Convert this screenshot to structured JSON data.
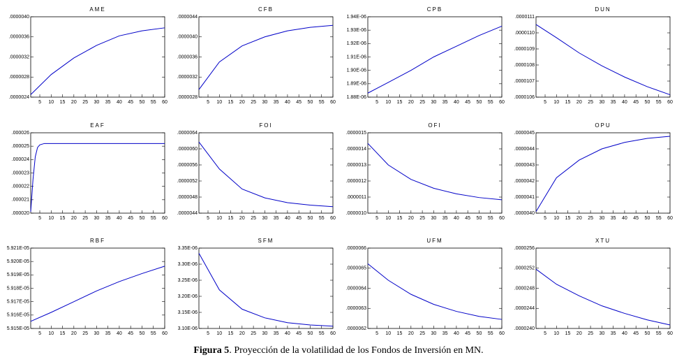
{
  "chart_data": [
    {
      "type": "line",
      "title": "AME",
      "color": "#0000c8",
      "xlim": [
        1,
        60
      ],
      "xticks": [
        5,
        10,
        15,
        20,
        25,
        30,
        35,
        40,
        45,
        50,
        55,
        60
      ],
      "ylim": [
        2.4e-06,
        4e-06
      ],
      "yticks": [
        {
          "value": 2.4e-06,
          "label": ".0000024"
        },
        {
          "value": 2.8e-06,
          "label": ".0000028"
        },
        {
          "value": 3.2e-06,
          "label": ".0000032"
        },
        {
          "value": 3.6e-06,
          "label": ".0000036"
        },
        {
          "value": 4e-06,
          "label": ".0000040"
        }
      ],
      "x": [
        1,
        10,
        20,
        30,
        40,
        50,
        60
      ],
      "values": [
        2.45e-06,
        2.85e-06,
        3.18e-06,
        3.43e-06,
        3.62e-06,
        3.72e-06,
        3.78e-06
      ]
    },
    {
      "type": "line",
      "title": "CFB",
      "color": "#0000c8",
      "xlim": [
        1,
        60
      ],
      "xticks": [
        5,
        10,
        15,
        20,
        25,
        30,
        35,
        40,
        45,
        50,
        55,
        60
      ],
      "ylim": [
        2.8e-06,
        4.4e-06
      ],
      "yticks": [
        {
          "value": 2.8e-06,
          "label": ".0000028"
        },
        {
          "value": 3.2e-06,
          "label": ".0000032"
        },
        {
          "value": 3.6e-06,
          "label": ".0000036"
        },
        {
          "value": 4e-06,
          "label": ".0000040"
        },
        {
          "value": 4.4e-06,
          "label": ".0000044"
        }
      ],
      "x": [
        1,
        10,
        20,
        30,
        40,
        50,
        60
      ],
      "values": [
        2.95e-06,
        3.5e-06,
        3.82e-06,
        4e-06,
        4.12e-06,
        4.19e-06,
        4.23e-06
      ]
    },
    {
      "type": "line",
      "title": "CPB",
      "color": "#0000c8",
      "xlim": [
        1,
        60
      ],
      "xticks": [
        5,
        10,
        15,
        20,
        25,
        30,
        35,
        40,
        45,
        50,
        55,
        60
      ],
      "ylim": [
        1.88e-06,
        1.94e-06
      ],
      "yticks": [
        {
          "value": 1.88e-06,
          "label": "1.88E-06"
        },
        {
          "value": 1.89e-06,
          "label": "1.89E-06"
        },
        {
          "value": 1.9e-06,
          "label": "1.90E-06"
        },
        {
          "value": 1.91e-06,
          "label": "1.91E-06"
        },
        {
          "value": 1.92e-06,
          "label": "1.92E-06"
        },
        {
          "value": 1.93e-06,
          "label": "1.93E-06"
        },
        {
          "value": 1.94e-06,
          "label": "1.94E-06"
        }
      ],
      "x": [
        1,
        10,
        20,
        30,
        40,
        50,
        60
      ],
      "values": [
        1.883e-06,
        1.891e-06,
        1.9e-06,
        1.91e-06,
        1.918e-06,
        1.926e-06,
        1.933e-06
      ]
    },
    {
      "type": "line",
      "title": "DUN",
      "color": "#0000c8",
      "xlim": [
        1,
        60
      ],
      "xticks": [
        5,
        10,
        15,
        20,
        25,
        30,
        35,
        40,
        45,
        50,
        55,
        60
      ],
      "ylim": [
        1.06e-05,
        1.11e-05
      ],
      "yticks": [
        {
          "value": 1.06e-05,
          "label": ".0000106"
        },
        {
          "value": 1.07e-05,
          "label": ".0000107"
        },
        {
          "value": 1.08e-05,
          "label": ".0000108"
        },
        {
          "value": 1.09e-05,
          "label": ".0000109"
        },
        {
          "value": 1.1e-05,
          "label": ".0000110"
        },
        {
          "value": 1.11e-05,
          "label": ".0000111"
        }
      ],
      "x": [
        1,
        10,
        20,
        30,
        40,
        50,
        60
      ],
      "values": [
        1.1052e-05,
        1.097e-05,
        1.0875e-05,
        1.0795e-05,
        1.0725e-05,
        1.0665e-05,
        1.0615e-05
      ]
    },
    {
      "type": "line",
      "title": "EAF",
      "color": "#0000c8",
      "xlim": [
        1,
        60
      ],
      "xticks": [
        5,
        10,
        15,
        20,
        25,
        30,
        35,
        40,
        45,
        50,
        55,
        60
      ],
      "ylim": [
        2e-05,
        2.6e-05
      ],
      "yticks": [
        {
          "value": 2e-05,
          "label": ".000020"
        },
        {
          "value": 2.1e-05,
          "label": ".000021"
        },
        {
          "value": 2.2e-05,
          "label": ".000022"
        },
        {
          "value": 2.3e-05,
          "label": ".000023"
        },
        {
          "value": 2.4e-05,
          "label": ".000024"
        },
        {
          "value": 2.5e-05,
          "label": ".000025"
        },
        {
          "value": 2.6e-05,
          "label": ".000026"
        }
      ],
      "x": [
        1,
        2,
        3,
        4,
        5,
        7,
        10,
        20,
        30,
        40,
        50,
        60
      ],
      "values": [
        2.01e-05,
        2.25e-05,
        2.42e-05,
        2.49e-05,
        2.51e-05,
        2.52e-05,
        2.52e-05,
        2.52e-05,
        2.52e-05,
        2.52e-05,
        2.52e-05,
        2.52e-05
      ]
    },
    {
      "type": "line",
      "title": "FOI",
      "color": "#0000c8",
      "xlim": [
        1,
        60
      ],
      "xticks": [
        5,
        10,
        15,
        20,
        25,
        30,
        35,
        40,
        45,
        50,
        55,
        60
      ],
      "ylim": [
        4.4e-06,
        6.4e-06
      ],
      "yticks": [
        {
          "value": 4.4e-06,
          "label": ".0000044"
        },
        {
          "value": 4.8e-06,
          "label": ".0000048"
        },
        {
          "value": 5.2e-06,
          "label": ".0000052"
        },
        {
          "value": 5.6e-06,
          "label": ".0000056"
        },
        {
          "value": 6e-06,
          "label": ".0000060"
        },
        {
          "value": 6.4e-06,
          "label": ".0000064"
        }
      ],
      "x": [
        1,
        10,
        20,
        30,
        40,
        50,
        60
      ],
      "values": [
        6.17e-06,
        5.5e-06,
        5e-06,
        4.78e-06,
        4.66e-06,
        4.6e-06,
        4.56e-06
      ]
    },
    {
      "type": "line",
      "title": "OFI",
      "color": "#0000c8",
      "xlim": [
        1,
        60
      ],
      "xticks": [
        5,
        10,
        15,
        20,
        25,
        30,
        35,
        40,
        45,
        50,
        55,
        60
      ],
      "ylim": [
        1e-06,
        1.5e-06
      ],
      "yticks": [
        {
          "value": 1e-06,
          "label": ".0000010"
        },
        {
          "value": 1.1e-06,
          "label": ".0000011"
        },
        {
          "value": 1.2e-06,
          "label": ".0000012"
        },
        {
          "value": 1.3e-06,
          "label": ".0000013"
        },
        {
          "value": 1.4e-06,
          "label": ".0000014"
        },
        {
          "value": 1.5e-06,
          "label": ".0000015"
        }
      ],
      "x": [
        1,
        10,
        20,
        30,
        40,
        50,
        60
      ],
      "values": [
        1.434e-06,
        1.3e-06,
        1.21e-06,
        1.155e-06,
        1.12e-06,
        1.097e-06,
        1.083e-06
      ]
    },
    {
      "type": "line",
      "title": "OPU",
      "color": "#0000c8",
      "xlim": [
        1,
        60
      ],
      "xticks": [
        5,
        10,
        15,
        20,
        25,
        30,
        35,
        40,
        45,
        50,
        55,
        60
      ],
      "ylim": [
        4e-06,
        4.5e-06
      ],
      "yticks": [
        {
          "value": 4e-06,
          "label": ".0000040"
        },
        {
          "value": 4.1e-06,
          "label": ".0000041"
        },
        {
          "value": 4.2e-06,
          "label": ".0000042"
        },
        {
          "value": 4.3e-06,
          "label": ".0000043"
        },
        {
          "value": 4.4e-06,
          "label": ".0000044"
        },
        {
          "value": 4.5e-06,
          "label": ".0000045"
        }
      ],
      "x": [
        1,
        10,
        20,
        30,
        40,
        50,
        60
      ],
      "values": [
        4.01e-06,
        4.22e-06,
        4.33e-06,
        4.4e-06,
        4.44e-06,
        4.465e-06,
        4.478e-06
      ]
    },
    {
      "type": "line",
      "title": "RBF",
      "color": "#0000c8",
      "xlim": [
        1,
        60
      ],
      "xticks": [
        5,
        10,
        15,
        20,
        25,
        30,
        35,
        40,
        45,
        50,
        55,
        60
      ],
      "ylim": [
        5.915e-05,
        5.921e-05
      ],
      "yticks": [
        {
          "value": 5.915e-05,
          "label": "5.915E-05"
        },
        {
          "value": 5.916e-05,
          "label": "5.916E-05"
        },
        {
          "value": 5.917e-05,
          "label": "5.917E-05"
        },
        {
          "value": 5.918e-05,
          "label": "5.918E-05"
        },
        {
          "value": 5.919e-05,
          "label": "5.919E-05"
        },
        {
          "value": 5.92e-05,
          "label": "5.920E-05"
        },
        {
          "value": 5.921e-05,
          "label": "5.921E-05"
        }
      ],
      "x": [
        1,
        10,
        20,
        30,
        40,
        50,
        60
      ],
      "values": [
        5.91553e-05,
        5.9162e-05,
        5.917e-05,
        5.9178e-05,
        5.9185e-05,
        5.9191e-05,
        5.91965e-05
      ]
    },
    {
      "type": "line",
      "title": "SFM",
      "color": "#0000c8",
      "xlim": [
        1,
        60
      ],
      "xticks": [
        5,
        10,
        15,
        20,
        25,
        30,
        35,
        40,
        45,
        50,
        55,
        60
      ],
      "ylim": [
        3.1e-06,
        3.35e-06
      ],
      "yticks": [
        {
          "value": 3.1e-06,
          "label": "3.10E-06"
        },
        {
          "value": 3.15e-06,
          "label": "3.15E-06"
        },
        {
          "value": 3.2e-06,
          "label": "3.20E-06"
        },
        {
          "value": 3.25e-06,
          "label": "3.25E-06"
        },
        {
          "value": 3.3e-06,
          "label": "3.30E-06"
        },
        {
          "value": 3.35e-06,
          "label": "3.35E-06"
        }
      ],
      "x": [
        1,
        10,
        20,
        30,
        40,
        50,
        60
      ],
      "values": [
        3.334e-06,
        3.22e-06,
        3.16e-06,
        3.133e-06,
        3.118e-06,
        3.111e-06,
        3.107e-06
      ]
    },
    {
      "type": "line",
      "title": "UFM",
      "color": "#0000c8",
      "xlim": [
        1,
        60
      ],
      "xticks": [
        5,
        10,
        15,
        20,
        25,
        30,
        35,
        40,
        45,
        50,
        55,
        60
      ],
      "ylim": [
        6.2e-06,
        6.6e-06
      ],
      "yticks": [
        {
          "value": 6.2e-06,
          "label": ".0000062"
        },
        {
          "value": 6.3e-06,
          "label": ".0000063"
        },
        {
          "value": 6.4e-06,
          "label": ".0000064"
        },
        {
          "value": 6.5e-06,
          "label": ".0000065"
        },
        {
          "value": 6.6e-06,
          "label": ".0000066"
        }
      ],
      "x": [
        1,
        10,
        20,
        30,
        40,
        50,
        60
      ],
      "values": [
        6.522e-06,
        6.44e-06,
        6.37e-06,
        6.32e-06,
        6.285e-06,
        6.26e-06,
        6.245e-06
      ]
    },
    {
      "type": "line",
      "title": "XTU",
      "color": "#0000c8",
      "xlim": [
        1,
        60
      ],
      "xticks": [
        5,
        10,
        15,
        20,
        25,
        30,
        35,
        40,
        45,
        50,
        55,
        60
      ],
      "ylim": [
        2.4e-05,
        2.56e-05
      ],
      "yticks": [
        {
          "value": 2.4e-05,
          "label": ".0000240"
        },
        {
          "value": 2.44e-05,
          "label": ".0000244"
        },
        {
          "value": 2.48e-05,
          "label": ".0000248"
        },
        {
          "value": 2.52e-05,
          "label": ".0000252"
        },
        {
          "value": 2.56e-05,
          "label": ".0000256"
        }
      ],
      "x": [
        1,
        10,
        20,
        30,
        40,
        50,
        60
      ],
      "values": [
        2.518e-05,
        2.488e-05,
        2.465e-05,
        2.445e-05,
        2.43e-05,
        2.417e-05,
        2.407e-05
      ]
    }
  ],
  "caption": {
    "label": "Figura 5",
    "text": ". Proyección de la volatilidad de los Fondos de Inversión en MN."
  }
}
